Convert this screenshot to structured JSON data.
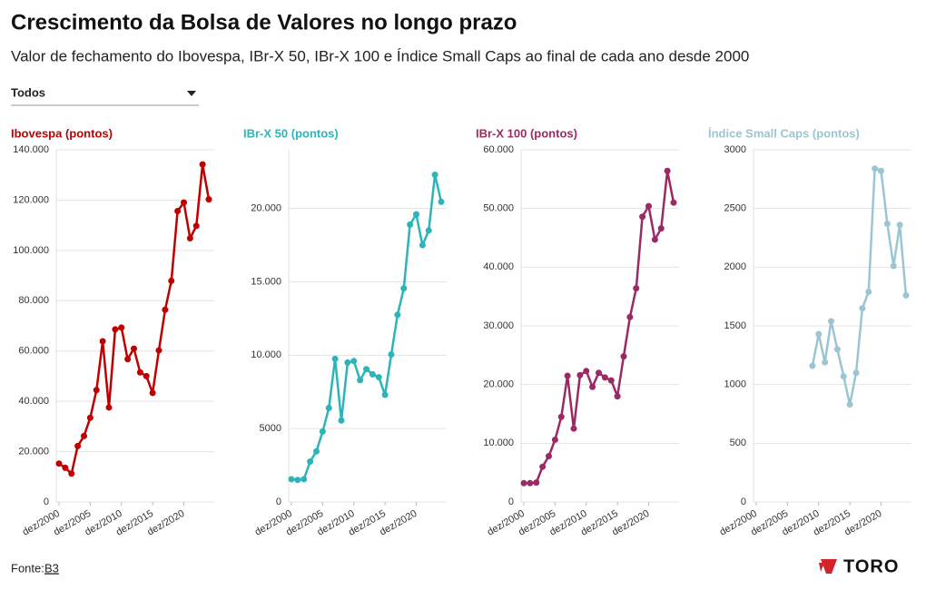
{
  "header": {
    "title": "Crescimento da Bolsa de Valores no longo prazo",
    "subtitle": "Valor de fechamento do Ibovespa, IBr-X 50, IBr-X 100 e Índice Small Caps ao final de cada ano desde 2000",
    "filter": "Todos"
  },
  "footer": {
    "source_label": "Fonte:",
    "source": "B3",
    "brand": "TORO"
  },
  "chart_data": [
    {
      "type": "line",
      "title": "Ibovespa (pontos)",
      "color": "#c00000",
      "categories": [
        "dez/2000",
        null,
        null,
        null,
        null,
        "dez/2005",
        null,
        null,
        null,
        null,
        "dez/2010",
        null,
        null,
        null,
        null,
        "dez/2015",
        null,
        null,
        null,
        null,
        "dez/2020",
        null,
        null,
        null,
        null
      ],
      "values": [
        15259,
        13577,
        11268,
        22236,
        26196,
        33456,
        44473,
        63886,
        37550,
        68588,
        69305,
        56754,
        60952,
        51507,
        50007,
        43350,
        60227,
        76402,
        87887,
        115645,
        119017,
        104822,
        109735,
        134185,
        120283
      ],
      "ylim": [
        0,
        140000
      ],
      "yticks": [
        0,
        {
          "value": 20000,
          "label": "20.000"
        },
        {
          "value": 40000,
          "label": "40.000"
        },
        {
          "value": 60000,
          "label": "60.000"
        },
        {
          "value": 80000,
          "label": "80.000"
        },
        {
          "value": 100000,
          "label": "100.000"
        },
        {
          "value": 120000,
          "label": "120.000"
        },
        {
          "value": 140000,
          "label": "140.000"
        }
      ],
      "grid": true
    },
    {
      "type": "line",
      "title": "IBr-X 50 (pontos)",
      "color": "#2bb5b8",
      "categories": [
        "dez/2000",
        null,
        null,
        null,
        null,
        "dez/2005",
        null,
        null,
        null,
        null,
        "dez/2010",
        null,
        null,
        null,
        null,
        "dez/2015",
        null,
        null,
        null,
        null,
        "dez/2020",
        null,
        null,
        null,
        null
      ],
      "values": [
        1550,
        1500,
        1550,
        2750,
        3450,
        4800,
        6400,
        9750,
        5550,
        9500,
        9600,
        8300,
        9050,
        8700,
        8500,
        7300,
        10050,
        12750,
        14550,
        18900,
        19600,
        17500,
        18500,
        22300,
        20450
      ],
      "ylim": [
        0,
        24000
      ],
      "yticks": [
        0,
        5000,
        {
          "value": 10000,
          "label": "10.000"
        },
        {
          "value": 15000,
          "label": "15.000"
        },
        {
          "value": 20000,
          "label": "20.000"
        }
      ],
      "grid": true
    },
    {
      "type": "line",
      "title": "IBr-X 100 (pontos)",
      "color": "#9b2a64",
      "categories": [
        "dez/2000",
        null,
        null,
        null,
        null,
        "dez/2005",
        null,
        null,
        null,
        null,
        "dez/2010",
        null,
        null,
        null,
        null,
        "dez/2015",
        null,
        null,
        null,
        null,
        "dez/2020",
        null,
        null,
        null,
        null
      ],
      "values": [
        3200,
        3200,
        3300,
        6000,
        7800,
        10600,
        14500,
        21500,
        12500,
        21600,
        22300,
        19600,
        22000,
        21200,
        20700,
        18000,
        24800,
        31500,
        36400,
        48600,
        50400,
        44700,
        46600,
        56400,
        51000
      ],
      "ylim": [
        0,
        60000
      ],
      "yticks": [
        0,
        {
          "value": 10000,
          "label": "10.000"
        },
        {
          "value": 20000,
          "label": "20.000"
        },
        {
          "value": 30000,
          "label": "30.000"
        },
        {
          "value": 40000,
          "label": "40.000"
        },
        {
          "value": 50000,
          "label": "50.000"
        },
        {
          "value": 60000,
          "label": "60.000"
        }
      ],
      "grid": true
    },
    {
      "type": "line",
      "title": "Índice Small Caps (pontos)",
      "color": "#9cc5d3",
      "categories": [
        "dez/2000",
        null,
        null,
        null,
        null,
        "dez/2005",
        null,
        null,
        null,
        null,
        "dez/2010",
        null,
        null,
        null,
        null,
        "dez/2015",
        null,
        null,
        null,
        null,
        "dez/2020",
        null,
        null,
        null,
        null
      ],
      "values": [
        null,
        null,
        null,
        null,
        null,
        null,
        null,
        null,
        null,
        1160,
        1430,
        1190,
        1540,
        1300,
        1070,
        830,
        1100,
        1650,
        1790,
        2840,
        2820,
        2370,
        2010,
        2360,
        1760
      ],
      "ylim": [
        0,
        3000
      ],
      "yticks": [
        0,
        500,
        1000,
        1500,
        2000,
        2500,
        3000
      ],
      "grid": true
    }
  ]
}
